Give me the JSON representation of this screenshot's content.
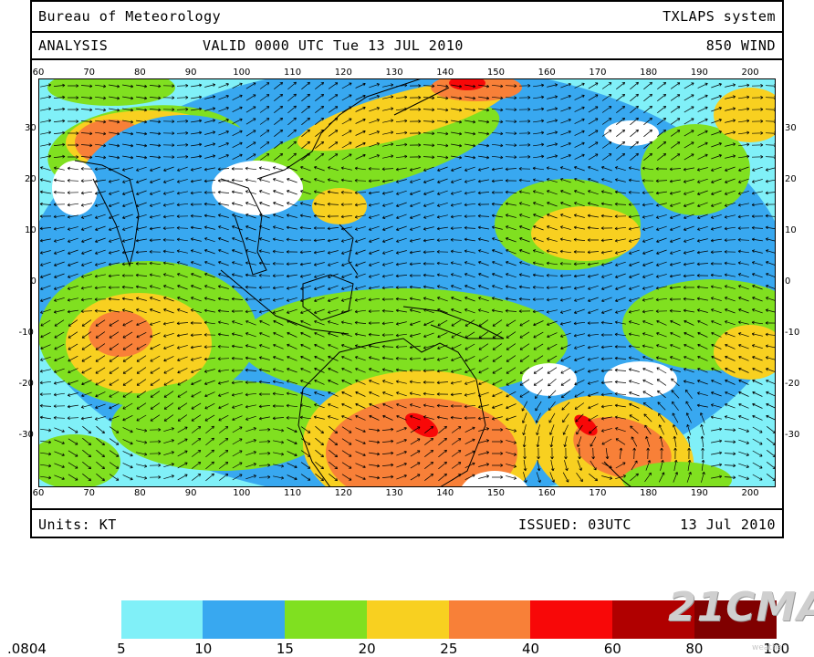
{
  "header": {
    "agency": "Bureau of Meteorology",
    "system": "TXLAPS system",
    "product": "ANALYSIS",
    "valid": "VALID  0000 UTC  Tue 13 JUL 2010",
    "field": "850 WIND"
  },
  "footer": {
    "units": "Units: KT",
    "issued": "ISSUED: 03UTC",
    "date": "13 Jul 2010"
  },
  "map": {
    "lon_labels": [
      "60",
      "70",
      "80",
      "90",
      "100",
      "110",
      "120",
      "130",
      "140",
      "150",
      "160",
      "170",
      "180",
      "190",
      "200"
    ],
    "lat_labels": [
      "30",
      "20",
      "10",
      "0",
      "-10",
      "-20",
      "-30"
    ],
    "lon_range": [
      60,
      205
    ],
    "lat_range": [
      -40,
      40
    ]
  },
  "colorbar": {
    "labels": [
      ".0804",
      "5",
      "10",
      "15",
      "20",
      "25",
      "40",
      "60",
      "80",
      "100"
    ],
    "colors": [
      "#ffffff",
      "#80f0f8",
      "#38a8f0",
      "#80e020",
      "#f8d020",
      "#f88038",
      "#f80808",
      "#b00000",
      "#800000"
    ]
  },
  "watermark": {
    "text": "21CMA",
    "sub": "weather"
  }
}
